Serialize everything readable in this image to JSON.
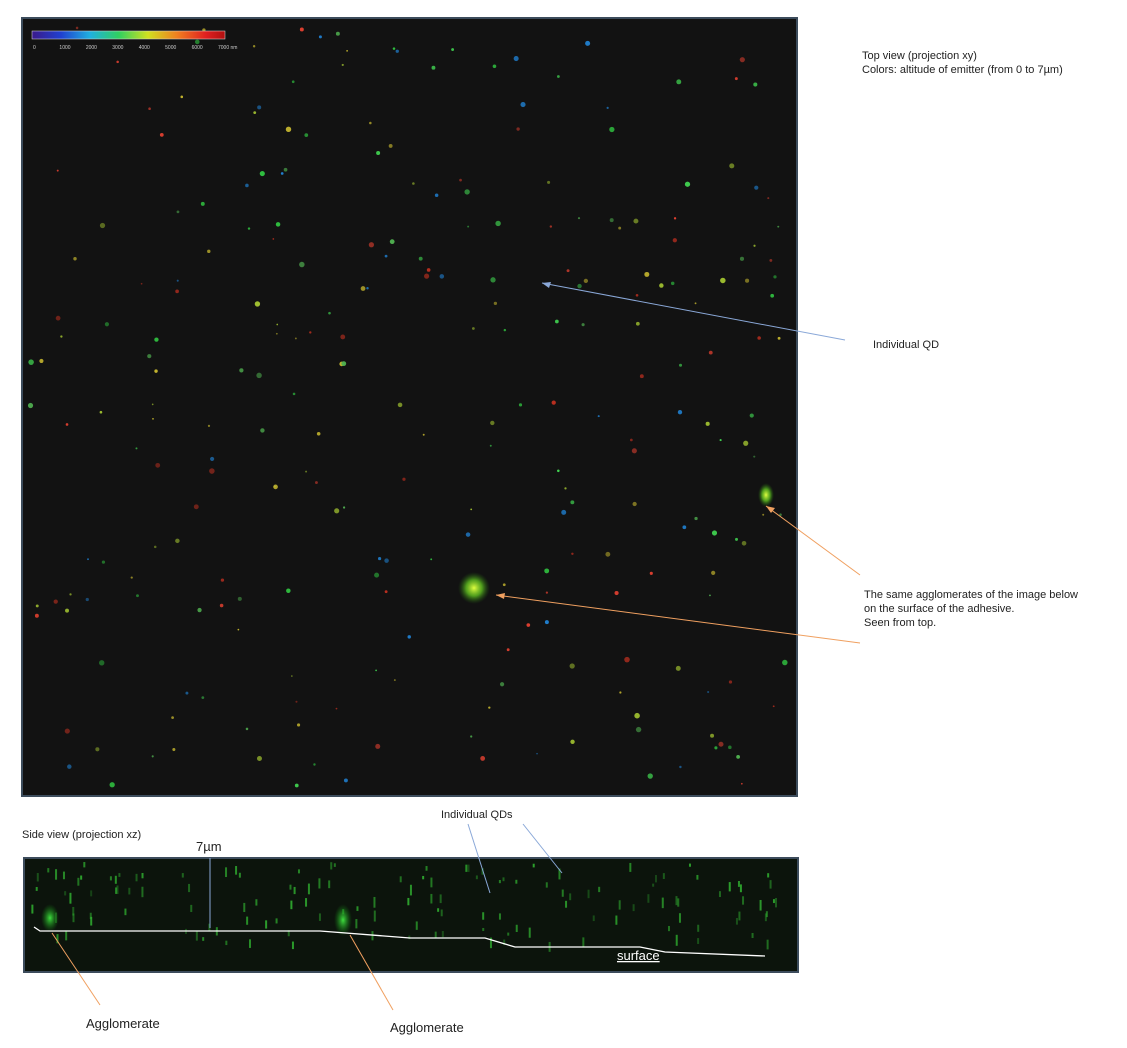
{
  "colorbar": {
    "labels": [
      "0",
      "1000",
      "2000",
      "3000",
      "4000",
      "5000",
      "6000",
      "7000 nm"
    ]
  },
  "top_view": {
    "title_lines": [
      "Top view (projection xy)",
      "Colors: altitude of emitter (from 0 to 7µm)"
    ],
    "annotations": {
      "individual_qd": "Individual QD",
      "agglomerates": [
        "The same agglomerates of the image below",
        "on the surface of the adhesive.",
        "Seen from top."
      ]
    }
  },
  "side_view": {
    "title": "Side view (projection xz)",
    "height_label": "7µm",
    "individual_qds": "Individual QDs",
    "surface": "surface",
    "agglomerates": [
      "Agglomerate",
      "Agglomerate"
    ]
  }
}
